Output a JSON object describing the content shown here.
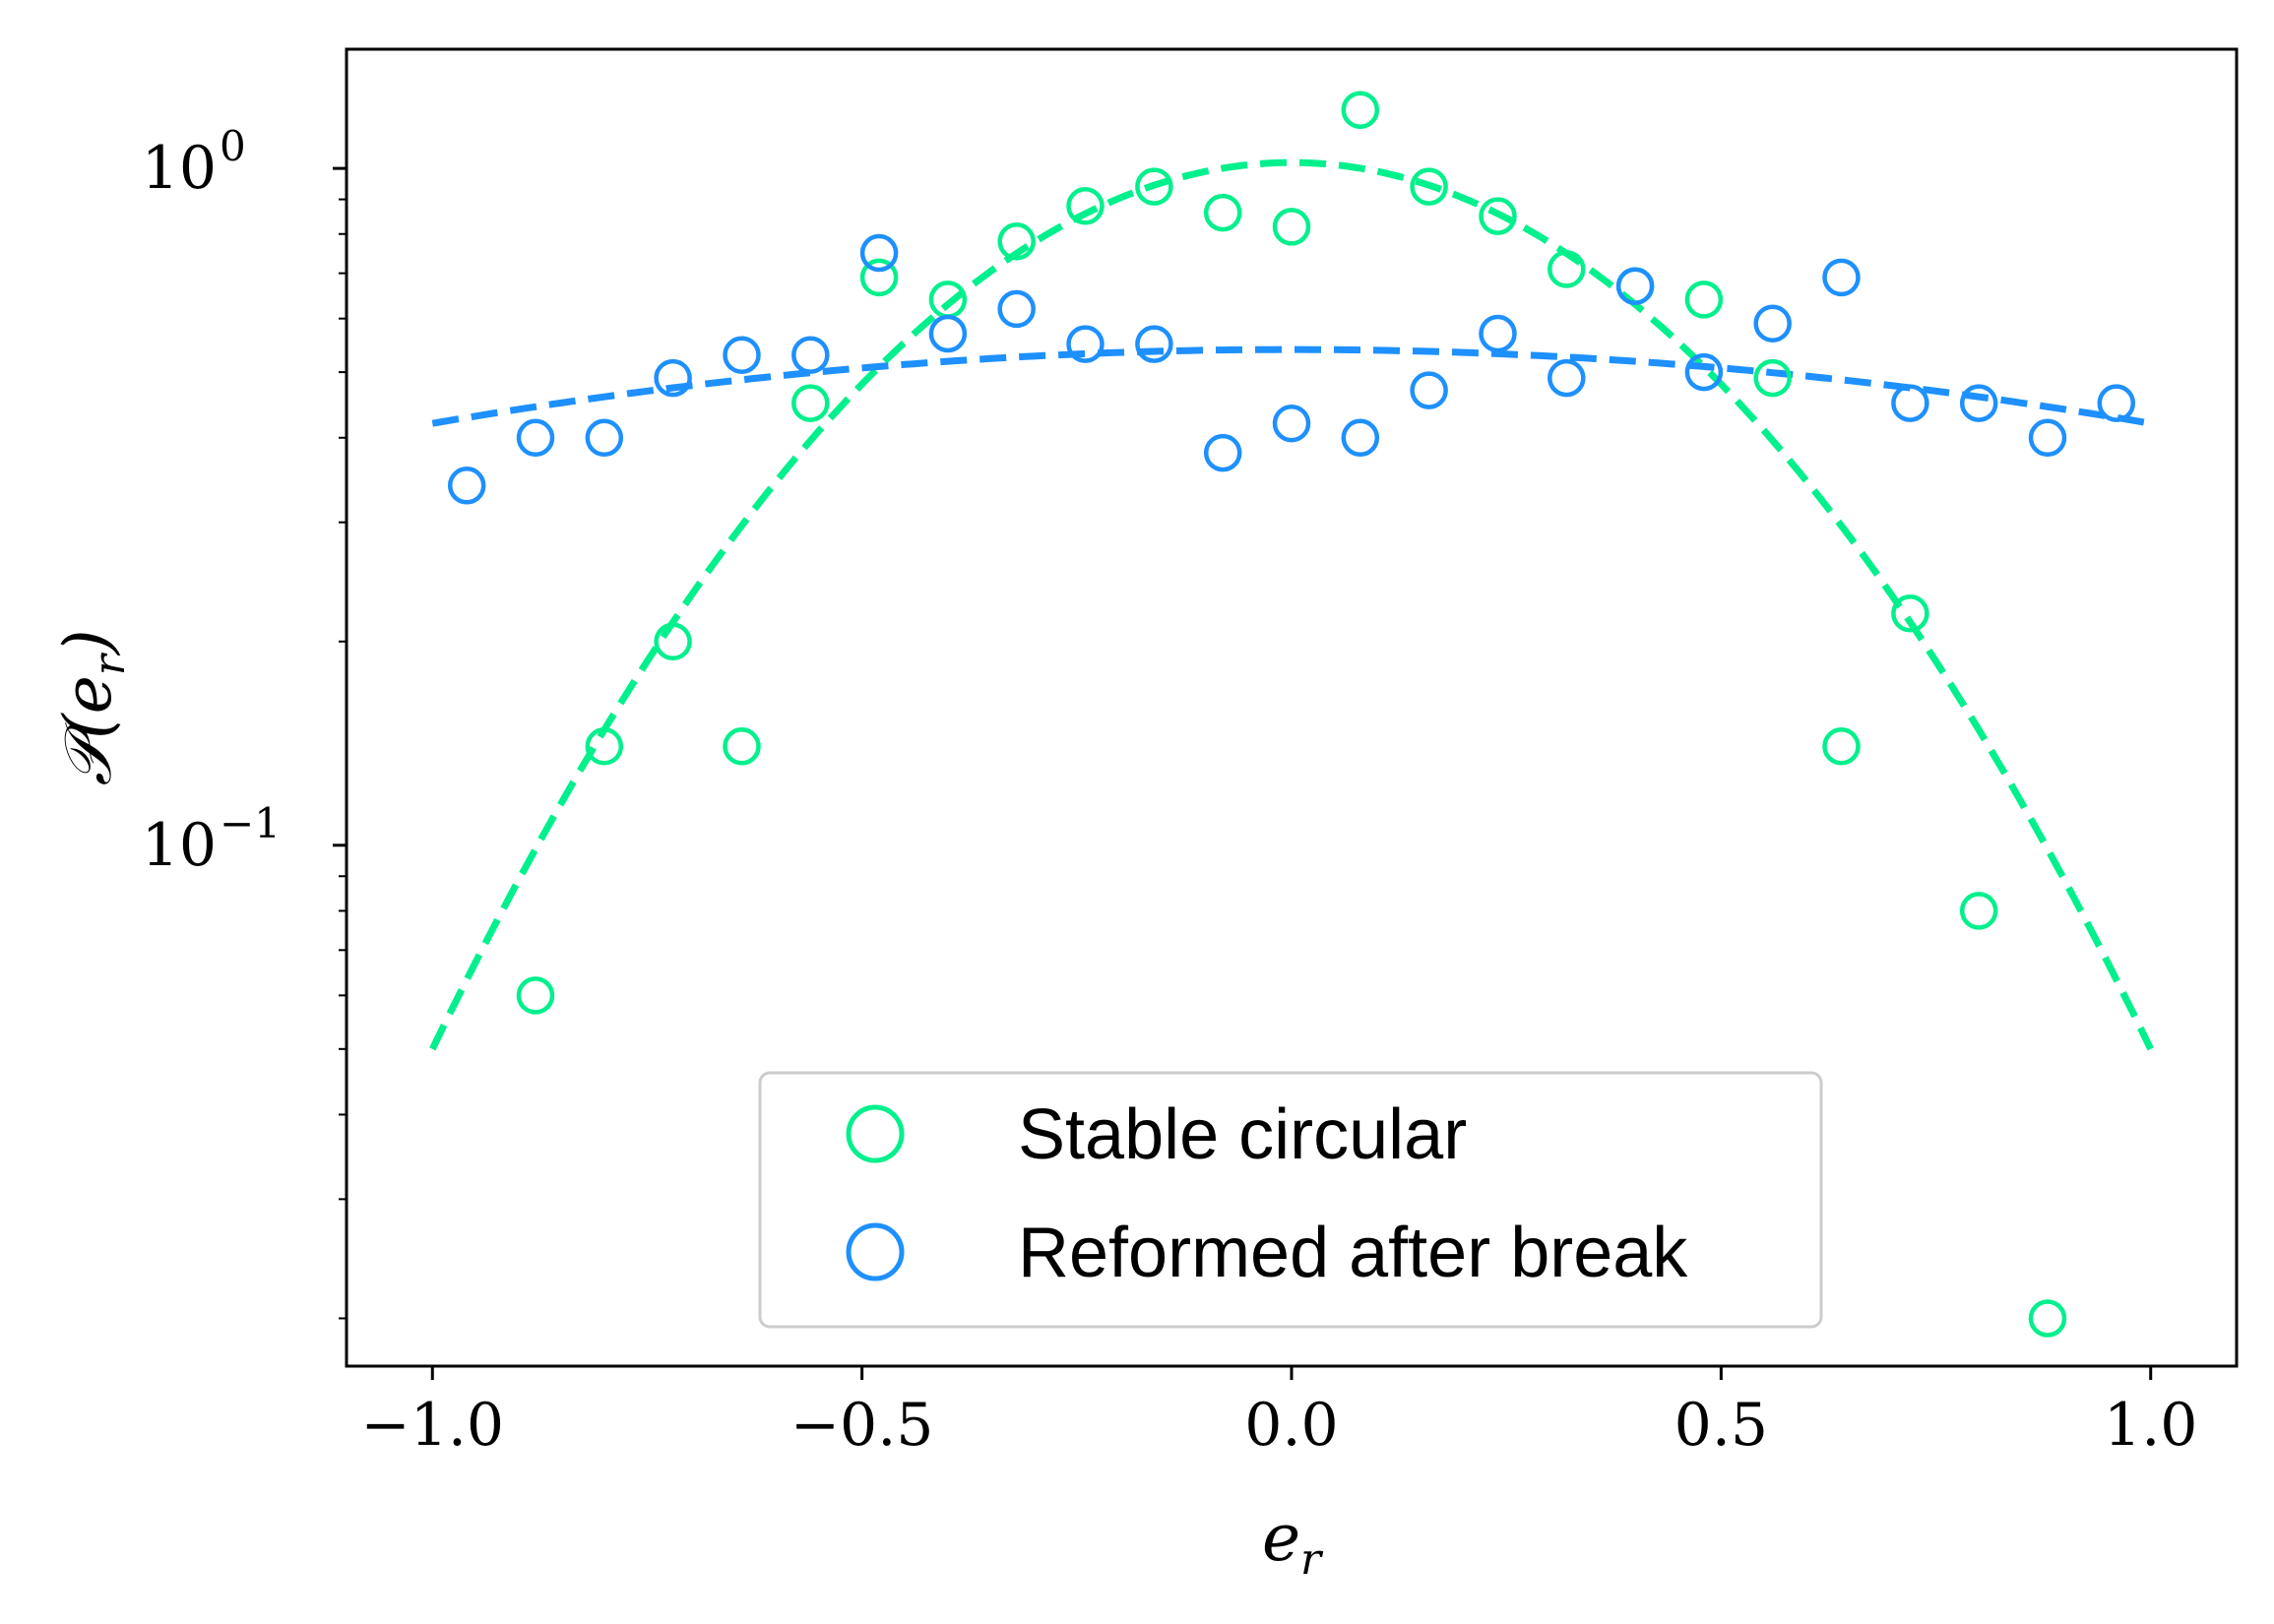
{
  "chart_data": {
    "type": "scatter",
    "xlabel": "e",
    "xlabel_sub": "r",
    "ylabel": "𝒫(e",
    "ylabel_sub": "r",
    "ylabel_close": ")",
    "xlim": [
      -1.1,
      1.1
    ],
    "ylim": [
      0.017,
      1.5
    ],
    "y_scale": "log",
    "grid": false,
    "legend_position": "bottom-center",
    "x_ticks": [
      {
        "value": -1.0,
        "label": "−1.0"
      },
      {
        "value": -0.5,
        "label": "−0.5"
      },
      {
        "value": 0.0,
        "label": "0.0"
      },
      {
        "value": 0.5,
        "label": "0.5"
      },
      {
        "value": 1.0,
        "label": "1.0"
      }
    ],
    "y_ticks": [
      {
        "value": 1.0,
        "base": "10",
        "exp": "0"
      },
      {
        "value": 0.1,
        "base": "10",
        "exp": "−1"
      }
    ],
    "series": [
      {
        "name": "Stable circular",
        "color": "#00f08c",
        "marker": "open-circle",
        "points": [
          [
            -0.88,
            0.06
          ],
          [
            -0.8,
            0.14
          ],
          [
            -0.72,
            0.2
          ],
          [
            -0.64,
            0.14
          ],
          [
            -0.56,
            0.45
          ],
          [
            -0.48,
            0.69
          ],
          [
            -0.4,
            0.64
          ],
          [
            -0.32,
            0.78
          ],
          [
            -0.24,
            0.88
          ],
          [
            -0.16,
            0.94
          ],
          [
            -0.08,
            0.86
          ],
          [
            0.0,
            0.82
          ],
          [
            0.08,
            1.22
          ],
          [
            0.16,
            0.94
          ],
          [
            0.24,
            0.85
          ],
          [
            0.32,
            0.71
          ],
          [
            0.4,
            0.67
          ],
          [
            0.48,
            0.64
          ],
          [
            0.56,
            0.49
          ],
          [
            0.64,
            0.14
          ],
          [
            0.72,
            0.22
          ],
          [
            0.8,
            0.08
          ],
          [
            0.88,
            0.02
          ]
        ],
        "fit": {
          "style": "dashed",
          "x_range": [
            -1.0,
            1.0
          ],
          "peak": 1.02,
          "edge_value": 0.05
        }
      },
      {
        "name": "Reformed after break",
        "color": "#1e90ff",
        "marker": "open-circle",
        "points": [
          [
            -0.96,
            0.34
          ],
          [
            -0.88,
            0.4
          ],
          [
            -0.8,
            0.4
          ],
          [
            -0.72,
            0.49
          ],
          [
            -0.64,
            0.53
          ],
          [
            -0.56,
            0.53
          ],
          [
            -0.48,
            0.75
          ],
          [
            -0.4,
            0.57
          ],
          [
            -0.32,
            0.62
          ],
          [
            -0.24,
            0.55
          ],
          [
            -0.16,
            0.55
          ],
          [
            -0.08,
            0.38
          ],
          [
            0.0,
            0.42
          ],
          [
            0.08,
            0.4
          ],
          [
            0.16,
            0.47
          ],
          [
            0.24,
            0.57
          ],
          [
            0.32,
            0.49
          ],
          [
            0.4,
            0.67
          ],
          [
            0.48,
            0.5
          ],
          [
            0.56,
            0.59
          ],
          [
            0.64,
            0.69
          ],
          [
            0.72,
            0.45
          ],
          [
            0.8,
            0.45
          ],
          [
            0.88,
            0.4
          ],
          [
            0.96,
            0.45
          ]
        ],
        "fit": {
          "style": "dashed",
          "x_range": [
            -1.0,
            1.0
          ],
          "peak": 0.54,
          "edge_value": 0.42
        }
      }
    ]
  }
}
